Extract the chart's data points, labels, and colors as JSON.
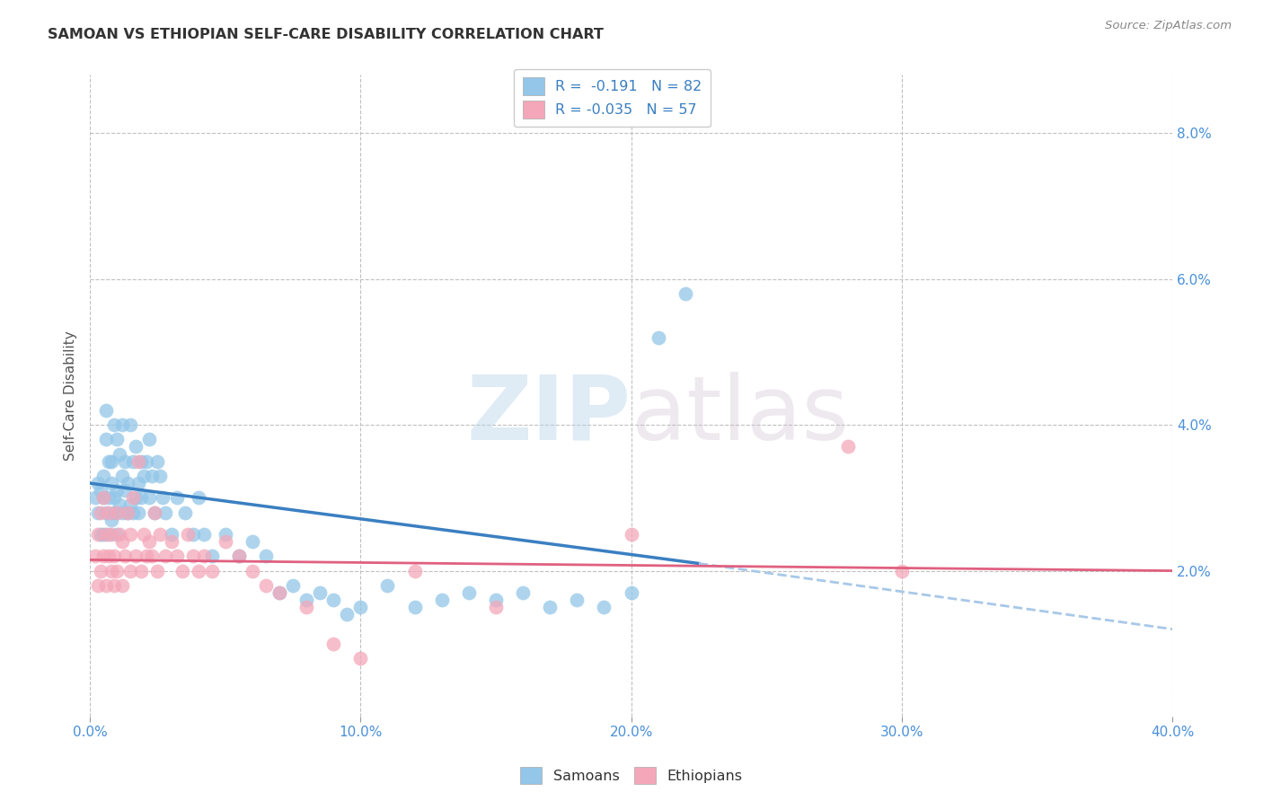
{
  "title": "SAMOAN VS ETHIOPIAN SELF-CARE DISABILITY CORRELATION CHART",
  "source": "Source: ZipAtlas.com",
  "ylabel": "Self-Care Disability",
  "xlim": [
    0.0,
    0.4
  ],
  "ylim": [
    0.0,
    0.088
  ],
  "xtick_labels": [
    "0.0%",
    "10.0%",
    "20.0%",
    "30.0%",
    "40.0%"
  ],
  "xtick_positions": [
    0.0,
    0.1,
    0.2,
    0.3,
    0.4
  ],
  "ytick_labels": [
    "2.0%",
    "4.0%",
    "6.0%",
    "8.0%"
  ],
  "ytick_positions": [
    0.02,
    0.04,
    0.06,
    0.08
  ],
  "samoan_color": "#93c6e8",
  "ethiopian_color": "#f4a7b9",
  "samoan_N": 82,
  "ethiopian_N": 57,
  "legend_label_samoan": "R =  -0.191   N = 82",
  "legend_label_ethiopian": "R = -0.035   N = 57",
  "legend_bottom_samoan": "Samoans",
  "legend_bottom_ethiopian": "Ethiopians",
  "trend_samoan_color": "#3a7fc1",
  "trend_ethiopian_color": "#e06080",
  "trend_samoan_dash_color": "#a8c8e8",
  "watermark_zip": "ZIP",
  "watermark_atlas": "atlas",
  "samoan_x": [
    0.002,
    0.003,
    0.003,
    0.004,
    0.004,
    0.005,
    0.005,
    0.005,
    0.006,
    0.006,
    0.006,
    0.007,
    0.007,
    0.007,
    0.008,
    0.008,
    0.008,
    0.009,
    0.009,
    0.009,
    0.01,
    0.01,
    0.01,
    0.011,
    0.011,
    0.012,
    0.012,
    0.012,
    0.013,
    0.013,
    0.014,
    0.014,
    0.015,
    0.015,
    0.016,
    0.016,
    0.017,
    0.017,
    0.018,
    0.018,
    0.019,
    0.019,
    0.02,
    0.021,
    0.022,
    0.022,
    0.023,
    0.024,
    0.025,
    0.026,
    0.027,
    0.028,
    0.03,
    0.032,
    0.035,
    0.038,
    0.04,
    0.042,
    0.045,
    0.05,
    0.055,
    0.06,
    0.065,
    0.07,
    0.075,
    0.08,
    0.085,
    0.09,
    0.095,
    0.1,
    0.11,
    0.12,
    0.13,
    0.14,
    0.15,
    0.16,
    0.17,
    0.18,
    0.19,
    0.2,
    0.21,
    0.22
  ],
  "samoan_y": [
    0.03,
    0.028,
    0.032,
    0.025,
    0.031,
    0.03,
    0.025,
    0.033,
    0.038,
    0.042,
    0.028,
    0.035,
    0.03,
    0.025,
    0.027,
    0.032,
    0.035,
    0.028,
    0.03,
    0.04,
    0.031,
    0.025,
    0.038,
    0.029,
    0.036,
    0.033,
    0.028,
    0.04,
    0.031,
    0.035,
    0.028,
    0.032,
    0.029,
    0.04,
    0.035,
    0.028,
    0.037,
    0.03,
    0.032,
    0.028,
    0.035,
    0.03,
    0.033,
    0.035,
    0.03,
    0.038,
    0.033,
    0.028,
    0.035,
    0.033,
    0.03,
    0.028,
    0.025,
    0.03,
    0.028,
    0.025,
    0.03,
    0.025,
    0.022,
    0.025,
    0.022,
    0.024,
    0.022,
    0.017,
    0.018,
    0.016,
    0.017,
    0.016,
    0.014,
    0.015,
    0.018,
    0.015,
    0.016,
    0.017,
    0.016,
    0.017,
    0.015,
    0.016,
    0.015,
    0.017,
    0.052,
    0.058
  ],
  "ethiopian_x": [
    0.002,
    0.003,
    0.003,
    0.004,
    0.004,
    0.005,
    0.005,
    0.006,
    0.006,
    0.007,
    0.007,
    0.008,
    0.008,
    0.009,
    0.009,
    0.01,
    0.01,
    0.011,
    0.012,
    0.012,
    0.013,
    0.014,
    0.015,
    0.015,
    0.016,
    0.017,
    0.018,
    0.019,
    0.02,
    0.021,
    0.022,
    0.023,
    0.024,
    0.025,
    0.026,
    0.028,
    0.03,
    0.032,
    0.034,
    0.036,
    0.038,
    0.04,
    0.042,
    0.045,
    0.05,
    0.055,
    0.06,
    0.065,
    0.07,
    0.08,
    0.09,
    0.1,
    0.12,
    0.15,
    0.2,
    0.28,
    0.3
  ],
  "ethiopian_y": [
    0.022,
    0.018,
    0.025,
    0.02,
    0.028,
    0.022,
    0.03,
    0.018,
    0.025,
    0.022,
    0.028,
    0.02,
    0.025,
    0.018,
    0.022,
    0.028,
    0.02,
    0.025,
    0.018,
    0.024,
    0.022,
    0.028,
    0.02,
    0.025,
    0.03,
    0.022,
    0.035,
    0.02,
    0.025,
    0.022,
    0.024,
    0.022,
    0.028,
    0.02,
    0.025,
    0.022,
    0.024,
    0.022,
    0.02,
    0.025,
    0.022,
    0.02,
    0.022,
    0.02,
    0.024,
    0.022,
    0.02,
    0.018,
    0.017,
    0.015,
    0.01,
    0.008,
    0.02,
    0.015,
    0.025,
    0.037,
    0.02
  ],
  "samoan_trend_x_start": 0.0,
  "samoan_trend_x_solid_end": 0.225,
  "samoan_trend_x_end": 0.4,
  "ethiopian_trend_x_start": 0.0,
  "ethiopian_trend_x_end": 0.4,
  "samoan_trend_y_start": 0.032,
  "samoan_trend_y_solid_end": 0.021,
  "samoan_trend_y_end": 0.012,
  "ethiopian_trend_y_start": 0.0215,
  "ethiopian_trend_y_end": 0.02
}
